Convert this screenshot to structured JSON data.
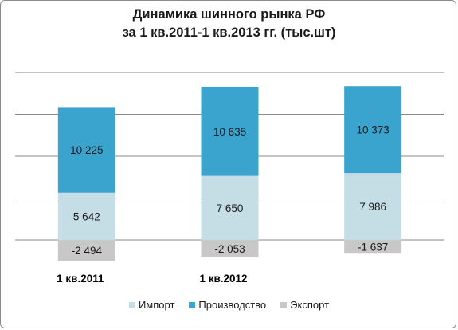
{
  "chart_data": {
    "type": "bar",
    "stacked": true,
    "title_lines": [
      "Динамика шинного рынка РФ",
      "за 1 кв.2011-1 кв.2013 гг. (тыс.шт)"
    ],
    "categories": [
      "1 кв.2011",
      "1 кв.2012",
      ""
    ],
    "series": [
      {
        "name": "Импорт",
        "color": "#c5dde5",
        "values": [
          5642,
          7650,
          7986
        ],
        "labels": [
          "5 642",
          "7 650",
          "7 986"
        ]
      },
      {
        "name": "Производство",
        "color": "#3aa3ce",
        "values": [
          10225,
          10635,
          10373
        ],
        "labels": [
          "10 225",
          "10 635",
          "10 373"
        ]
      },
      {
        "name": "Экспорт",
        "color": "#c8c8c8",
        "values": [
          -2494,
          -2053,
          -1637
        ],
        "labels": [
          "-2 494",
          "-2 053",
          "-1 637"
        ]
      }
    ],
    "ylim": [
      -5000,
      20000
    ],
    "grid": true,
    "legend_position": "bottom"
  }
}
